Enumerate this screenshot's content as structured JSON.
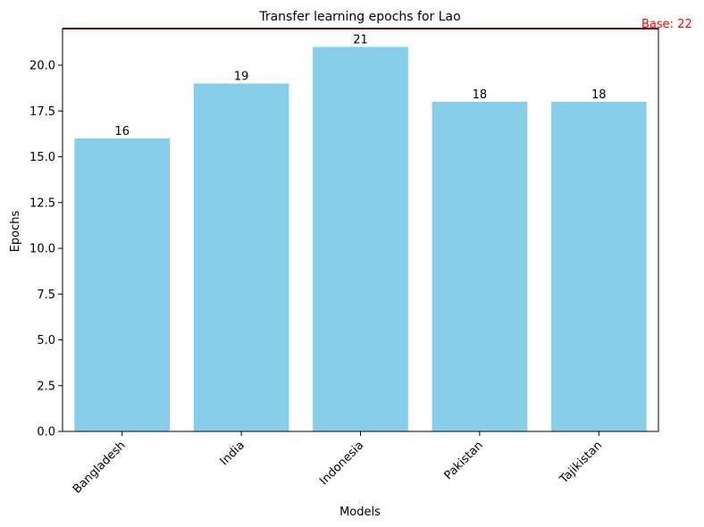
{
  "chart_data": {
    "type": "bar",
    "title": "Transfer learning epochs for Lao",
    "xlabel": "Models",
    "ylabel": "Epochs",
    "categories": [
      "Bangladesh",
      "India",
      "Indonesia",
      "Pakistan",
      "Tajikistan"
    ],
    "values": [
      16,
      19,
      21,
      18,
      18
    ],
    "data_labels": [
      "16",
      "19",
      "21",
      "18",
      "18"
    ],
    "ylim": [
      0,
      22
    ],
    "y_ticks": [
      0.0,
      2.5,
      5.0,
      7.5,
      10.0,
      12.5,
      15.0,
      17.5,
      20.0
    ],
    "y_tick_labels": [
      "0.0",
      "2.5",
      "5.0",
      "7.5",
      "10.0",
      "12.5",
      "15.0",
      "17.5",
      "20.0"
    ],
    "grid": false,
    "bar_color": "#87CEEB",
    "reference_line": {
      "value": 22,
      "label": "Base: 22",
      "color": "#FF0000"
    }
  }
}
